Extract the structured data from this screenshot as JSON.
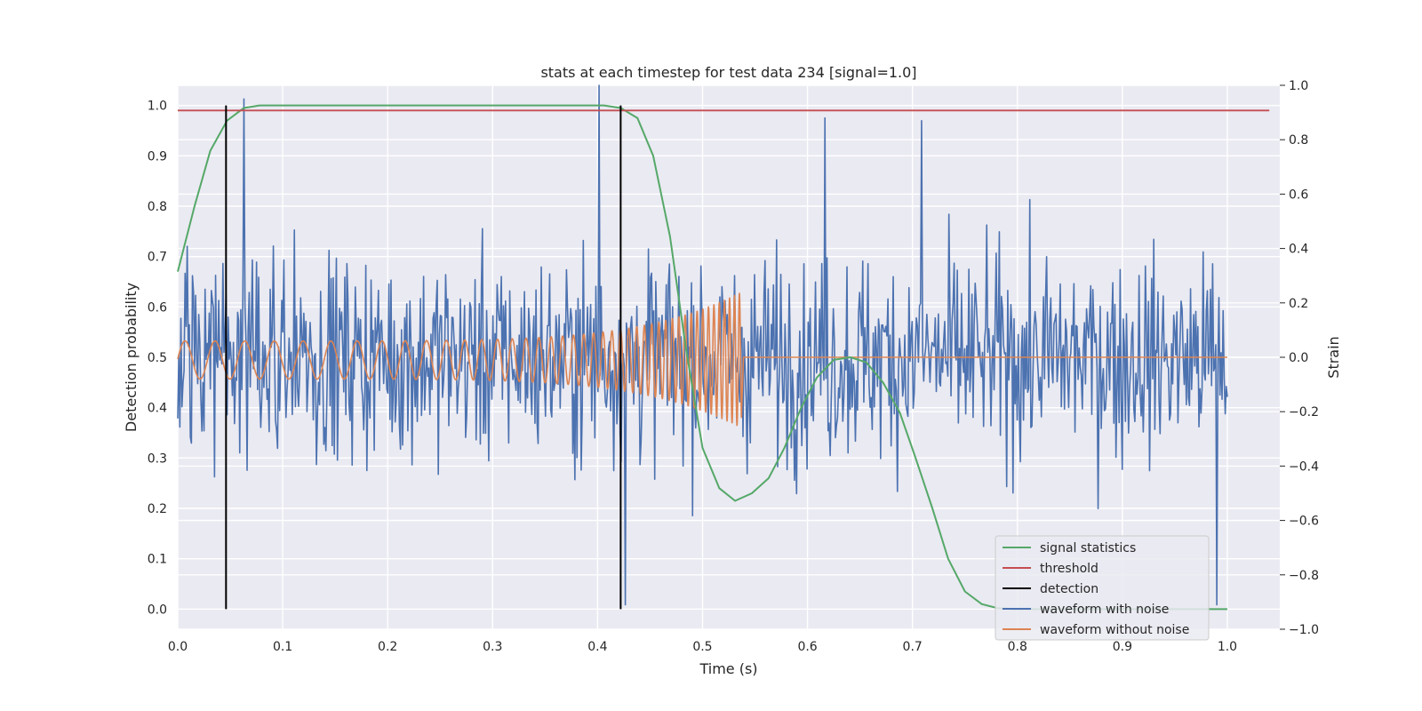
{
  "chart_data": {
    "type": "line",
    "title": "stats at each timestep for test data 234 [signal=1.0]",
    "xlabel": "Time (s)",
    "ylabel": "Detection probability",
    "y2label": "Strain",
    "xlim": [
      0.0,
      1.05
    ],
    "ylim": [
      -0.04,
      1.04
    ],
    "y2lim": [
      -1.0,
      1.0
    ],
    "xticks": [
      "0.0",
      "0.1",
      "0.2",
      "0.3",
      "0.4",
      "0.5",
      "0.6",
      "0.7",
      "0.8",
      "0.9",
      "1.0"
    ],
    "yticks": [
      "0.0",
      "0.1",
      "0.2",
      "0.3",
      "0.4",
      "0.5",
      "0.6",
      "0.7",
      "0.8",
      "0.9",
      "1.0"
    ],
    "y2ticks": [
      "−1.0",
      "−0.8",
      "−0.6",
      "−0.4",
      "−0.2",
      "0.0",
      "0.2",
      "0.4",
      "0.6",
      "0.8",
      "1.0"
    ],
    "grid": true,
    "legend_position": "lower-right",
    "colors": {
      "background": "#eaeaf2",
      "grid": "#ffffff",
      "signal_statistics": "#55a868",
      "threshold": "#c44e52",
      "detection": "#000000",
      "waveform_with_noise": "#4c72b0",
      "waveform_without_noise": "#dd8452"
    },
    "series": [
      {
        "name": "signal statistics",
        "axis": "left",
        "x": [
          0.0,
          0.016,
          0.031,
          0.047,
          0.063,
          0.078,
          0.094,
          0.109,
          0.125,
          0.141,
          0.156,
          0.172,
          0.188,
          0.203,
          0.219,
          0.234,
          0.25,
          0.266,
          0.281,
          0.297,
          0.313,
          0.328,
          0.344,
          0.359,
          0.375,
          0.391,
          0.406,
          0.422,
          0.438,
          0.453,
          0.469,
          0.484,
          0.5,
          0.516,
          0.531,
          0.547,
          0.563,
          0.578,
          0.594,
          0.609,
          0.625,
          0.641,
          0.656,
          0.672,
          0.688,
          0.703,
          0.719,
          0.734,
          0.75,
          0.766,
          0.781,
          0.797,
          0.813,
          0.828,
          0.844,
          0.859,
          0.875,
          0.891,
          0.906,
          0.922,
          0.938,
          0.953,
          0.969,
          0.984,
          1.0
        ],
        "y": [
          0.67,
          0.8,
          0.91,
          0.97,
          0.995,
          1.0,
          1.0,
          1.0,
          1.0,
          1.0,
          1.0,
          1.0,
          1.0,
          1.0,
          1.0,
          1.0,
          1.0,
          1.0,
          1.0,
          1.0,
          1.0,
          1.0,
          1.0,
          1.0,
          1.0,
          1.0,
          1.0,
          0.995,
          0.975,
          0.9,
          0.74,
          0.52,
          0.32,
          0.24,
          0.215,
          0.23,
          0.26,
          0.32,
          0.4,
          0.46,
          0.495,
          0.5,
          0.49,
          0.45,
          0.39,
          0.3,
          0.2,
          0.1,
          0.035,
          0.01,
          0.002,
          0.0,
          0.0,
          0.0,
          0.0,
          0.0,
          0.0,
          0.0,
          0.0,
          0.0,
          0.0,
          0.0,
          0.0,
          0.0,
          0.0
        ]
      },
      {
        "name": "threshold",
        "axis": "left",
        "x": [
          0.0,
          1.04
        ],
        "y": [
          0.99,
          0.99
        ]
      },
      {
        "name": "detection",
        "axis": "left",
        "x_values": [
          0.046,
          0.422
        ],
        "y_range": [
          0.0,
          1.0
        ]
      },
      {
        "name": "waveform with noise",
        "axis": "right",
        "x_range": [
          0.0,
          1.0
        ],
        "n_points": 1000,
        "y_range": [
          -0.92,
          1.0
        ],
        "note_points": [
          [
            0.063,
            0.95
          ],
          [
            0.401,
            1.0
          ],
          [
            0.426,
            -0.91
          ],
          [
            0.99,
            -0.91
          ],
          [
            0.709,
            0.87
          ],
          [
            0.617,
            0.88
          ]
        ]
      },
      {
        "name": "waveform without noise",
        "axis": "right",
        "x_range": [
          0.0,
          0.537
        ],
        "amplitude_start": 0.07,
        "amplitude_end": 0.25,
        "freq_start_hz": 35,
        "freq_end_hz": 220,
        "post_merger_value": 0.0
      }
    ]
  }
}
